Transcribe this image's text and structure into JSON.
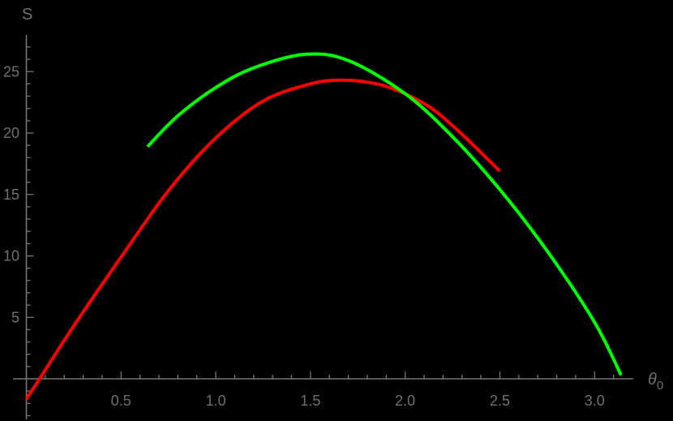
{
  "chart_data": {
    "type": "line",
    "title": "",
    "xlabel": "θ0",
    "ylabel": "S",
    "xlim": [
      0,
      3.2
    ],
    "ylim": [
      -3.3,
      27.7
    ],
    "x_ticks": [
      0.5,
      1.0,
      1.5,
      2.0,
      2.5,
      3.0
    ],
    "x_tick_labels": [
      "0.5",
      "1.0",
      "1.5",
      "2.0",
      "2.5",
      "3.0"
    ],
    "y_ticks": [
      5,
      10,
      15,
      20,
      25
    ],
    "y_tick_labels": [
      "5",
      "10",
      "15",
      "20",
      "25"
    ],
    "grid": false,
    "legend": null,
    "background": "#000000",
    "axis_color": "#777777",
    "series": [
      {
        "name": "red curve",
        "color": "#ff0000",
        "x": [
          0.0,
          0.07,
          0.25,
          0.5,
          0.75,
          1.0,
          1.25,
          1.5,
          1.67,
          1.85,
          2.0,
          2.15,
          2.3,
          2.5
        ],
        "y": [
          -1.65,
          0.0,
          4.3,
          9.9,
          15.3,
          19.6,
          22.6,
          24.0,
          24.3,
          24.0,
          23.2,
          21.9,
          19.9,
          16.9
        ]
      },
      {
        "name": "green curve",
        "color": "#00ff00",
        "x": [
          0.64,
          0.8,
          1.0,
          1.2,
          1.47,
          1.7,
          2.0,
          2.25,
          2.5,
          2.75,
          3.0,
          3.14
        ],
        "y": [
          18.9,
          21.4,
          23.7,
          25.3,
          26.4,
          25.9,
          23.2,
          19.7,
          15.4,
          10.4,
          4.6,
          0.3
        ]
      }
    ]
  },
  "axes": {
    "x_label_main": "θ",
    "x_label_sub": "0",
    "y_label": "S"
  }
}
